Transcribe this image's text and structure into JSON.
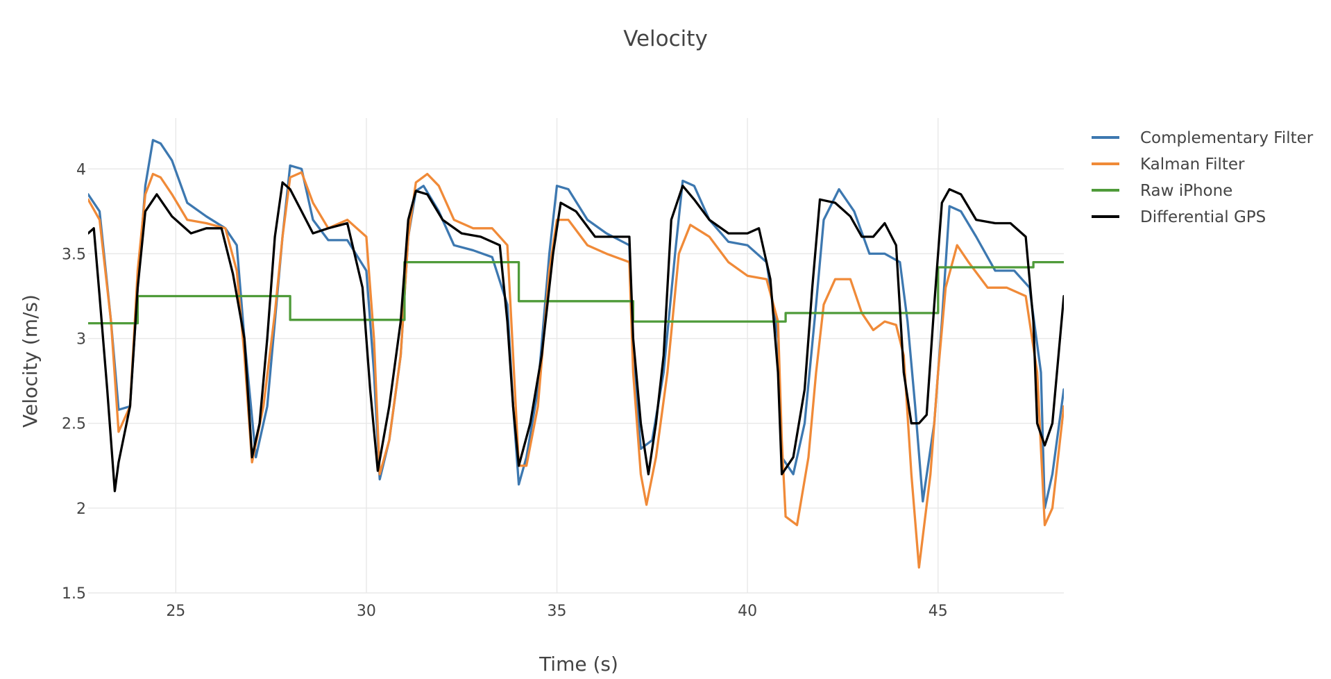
{
  "chart_data": {
    "type": "line",
    "title": "Velocity",
    "xlabel": "Time (s)",
    "ylabel": "Velocity (m/s)",
    "xlim": [
      22.7,
      48.3
    ],
    "ylim": [
      1.5,
      4.3
    ],
    "xticks": [
      25,
      30,
      35,
      40,
      45
    ],
    "xtick_labels": [
      "25",
      "30",
      "35",
      "40",
      "45"
    ],
    "yticks": [
      1.5,
      2,
      2.5,
      3,
      3.5,
      4
    ],
    "ytick_labels": [
      "1.5",
      "2",
      "2.5",
      "3",
      "3.5",
      "4"
    ],
    "grid": true,
    "legend_position": "top-right",
    "series": [
      {
        "name": "Complementary Filter",
        "color": "#3d78b0",
        "x": [
          22.7,
          23.0,
          23.3,
          23.5,
          23.8,
          24.0,
          24.2,
          24.4,
          24.6,
          24.9,
          25.3,
          25.8,
          26.3,
          26.6,
          26.8,
          27.1,
          27.4,
          27.6,
          27.8,
          28.0,
          28.3,
          28.6,
          29.0,
          29.5,
          30.0,
          30.2,
          30.35,
          30.6,
          30.9,
          31.1,
          31.3,
          31.5,
          31.9,
          32.3,
          32.8,
          33.3,
          33.7,
          33.85,
          34.0,
          34.2,
          34.5,
          34.8,
          35.0,
          35.3,
          35.8,
          36.3,
          36.9,
          37.0,
          37.2,
          37.5,
          37.8,
          38.1,
          38.3,
          38.6,
          39.0,
          39.5,
          40.0,
          40.5,
          40.8,
          40.9,
          41.2,
          41.5,
          41.8,
          42.0,
          42.4,
          42.8,
          43.2,
          43.6,
          44.0,
          44.2,
          44.4,
          44.6,
          44.9,
          45.1,
          45.3,
          45.6,
          46.0,
          46.5,
          47.0,
          47.4,
          47.7,
          47.8,
          48.0,
          48.3
        ],
        "values": [
          3.85,
          3.75,
          3.1,
          2.58,
          2.6,
          3.3,
          3.9,
          4.17,
          4.15,
          4.05,
          3.8,
          3.72,
          3.65,
          3.55,
          3.0,
          2.3,
          2.6,
          3.1,
          3.6,
          4.02,
          4.0,
          3.7,
          3.58,
          3.58,
          3.4,
          2.8,
          2.17,
          2.4,
          2.9,
          3.6,
          3.87,
          3.9,
          3.75,
          3.55,
          3.52,
          3.48,
          3.2,
          2.6,
          2.14,
          2.3,
          2.7,
          3.5,
          3.9,
          3.88,
          3.7,
          3.62,
          3.55,
          2.9,
          2.35,
          2.4,
          2.8,
          3.5,
          3.93,
          3.9,
          3.7,
          3.57,
          3.55,
          3.45,
          3.0,
          2.3,
          2.2,
          2.5,
          3.2,
          3.7,
          3.88,
          3.75,
          3.5,
          3.5,
          3.45,
          3.1,
          2.6,
          2.04,
          2.5,
          3.1,
          3.78,
          3.75,
          3.6,
          3.4,
          3.4,
          3.3,
          2.8,
          2.0,
          2.2,
          2.7
        ]
      },
      {
        "name": "Kalman Filter",
        "color": "#f08a38",
        "x": [
          22.7,
          23.0,
          23.3,
          23.5,
          23.8,
          24.0,
          24.2,
          24.4,
          24.6,
          24.9,
          25.3,
          25.8,
          26.3,
          26.6,
          26.8,
          27.0,
          27.3,
          27.6,
          27.8,
          28.0,
          28.3,
          28.6,
          29.0,
          29.5,
          30.0,
          30.2,
          30.35,
          30.6,
          30.9,
          31.1,
          31.3,
          31.6,
          31.9,
          32.3,
          32.8,
          33.3,
          33.7,
          33.85,
          34.0,
          34.2,
          34.5,
          34.8,
          35.0,
          35.3,
          35.8,
          36.3,
          36.9,
          37.0,
          37.2,
          37.35,
          37.6,
          37.9,
          38.2,
          38.5,
          39.0,
          39.5,
          40.0,
          40.5,
          40.8,
          40.9,
          41.0,
          41.3,
          41.6,
          41.8,
          42.0,
          42.3,
          42.7,
          43.0,
          43.3,
          43.6,
          43.9,
          44.1,
          44.3,
          44.5,
          44.8,
          45.0,
          45.2,
          45.5,
          45.8,
          46.3,
          46.8,
          47.3,
          47.6,
          47.8,
          48.0,
          48.3
        ],
        "values": [
          3.82,
          3.7,
          3.1,
          2.45,
          2.6,
          3.4,
          3.85,
          3.97,
          3.95,
          3.85,
          3.7,
          3.68,
          3.65,
          3.4,
          2.9,
          2.27,
          2.6,
          3.15,
          3.6,
          3.95,
          3.98,
          3.8,
          3.65,
          3.7,
          3.6,
          3.0,
          2.2,
          2.4,
          2.9,
          3.6,
          3.92,
          3.97,
          3.9,
          3.7,
          3.65,
          3.65,
          3.55,
          2.9,
          2.25,
          2.25,
          2.6,
          3.4,
          3.7,
          3.7,
          3.55,
          3.5,
          3.45,
          2.8,
          2.2,
          2.02,
          2.3,
          2.8,
          3.5,
          3.67,
          3.6,
          3.45,
          3.37,
          3.35,
          3.1,
          2.4,
          1.95,
          1.9,
          2.3,
          2.8,
          3.2,
          3.35,
          3.35,
          3.15,
          3.05,
          3.1,
          3.08,
          2.9,
          2.2,
          1.65,
          2.2,
          2.8,
          3.3,
          3.55,
          3.45,
          3.3,
          3.3,
          3.25,
          2.8,
          1.9,
          2.0,
          2.6
        ]
      },
      {
        "name": "Raw iPhone",
        "color": "#4f9b3a",
        "x": [
          22.7,
          24.0,
          24.0,
          28.0,
          28.0,
          31.0,
          31.0,
          34.0,
          34.0,
          37.0,
          37.0,
          41.0,
          41.0,
          45.0,
          45.0,
          47.5,
          47.5,
          48.3
        ],
        "values": [
          3.09,
          3.09,
          3.25,
          3.25,
          3.11,
          3.11,
          3.45,
          3.45,
          3.22,
          3.22,
          3.1,
          3.1,
          3.15,
          3.15,
          3.42,
          3.42,
          3.45,
          3.45
        ]
      },
      {
        "name": "Differential GPS",
        "color": "#000000",
        "x": [
          22.7,
          22.85,
          23.0,
          23.2,
          23.4,
          23.5,
          23.8,
          24.0,
          24.2,
          24.5,
          24.9,
          25.4,
          25.8,
          26.2,
          26.5,
          26.8,
          27.0,
          27.2,
          27.4,
          27.6,
          27.8,
          28.0,
          28.3,
          28.6,
          29.0,
          29.5,
          29.9,
          30.1,
          30.3,
          30.6,
          30.9,
          31.1,
          31.3,
          31.6,
          32.0,
          32.5,
          33.0,
          33.5,
          33.7,
          33.85,
          34.0,
          34.3,
          34.6,
          34.9,
          35.1,
          35.5,
          36.0,
          36.5,
          36.9,
          37.0,
          37.2,
          37.4,
          37.6,
          37.8,
          38.0,
          38.3,
          38.6,
          39.0,
          39.5,
          40.0,
          40.3,
          40.6,
          40.8,
          40.9,
          41.2,
          41.5,
          41.7,
          41.9,
          42.3,
          42.7,
          43.0,
          43.3,
          43.6,
          43.9,
          44.1,
          44.3,
          44.5,
          44.7,
          44.9,
          45.1,
          45.3,
          45.6,
          46.0,
          46.5,
          46.9,
          47.3,
          47.5,
          47.6,
          47.8,
          48.0,
          48.3
        ],
        "values": [
          3.62,
          3.65,
          3.25,
          2.7,
          2.1,
          2.27,
          2.6,
          3.3,
          3.75,
          3.85,
          3.72,
          3.62,
          3.65,
          3.65,
          3.38,
          3.0,
          2.3,
          2.5,
          3.0,
          3.6,
          3.92,
          3.88,
          3.75,
          3.62,
          3.65,
          3.68,
          3.3,
          2.7,
          2.22,
          2.6,
          3.1,
          3.7,
          3.87,
          3.85,
          3.7,
          3.62,
          3.6,
          3.55,
          3.1,
          2.6,
          2.25,
          2.5,
          2.9,
          3.5,
          3.8,
          3.75,
          3.6,
          3.6,
          3.6,
          3.0,
          2.5,
          2.2,
          2.5,
          2.9,
          3.7,
          3.9,
          3.82,
          3.7,
          3.62,
          3.62,
          3.65,
          3.35,
          2.8,
          2.2,
          2.3,
          2.7,
          3.3,
          3.82,
          3.8,
          3.72,
          3.6,
          3.6,
          3.68,
          3.55,
          2.8,
          2.5,
          2.5,
          2.55,
          3.2,
          3.8,
          3.88,
          3.85,
          3.7,
          3.68,
          3.68,
          3.6,
          3.1,
          2.5,
          2.37,
          2.5,
          3.25
        ]
      }
    ]
  }
}
